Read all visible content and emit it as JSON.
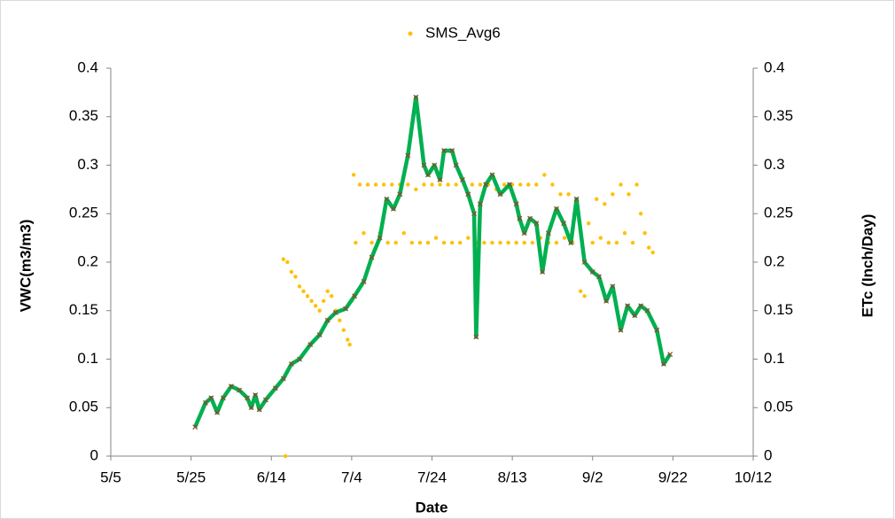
{
  "chart_data": {
    "type": "scatter",
    "x_label": "Date",
    "y_label": "VWC(m3/m3)",
    "y2_label": "ETc (Inch/Day)",
    "xlim": [
      125,
      285
    ],
    "xticks": [
      {
        "value": 125,
        "label": "5/5"
      },
      {
        "value": 145,
        "label": "5/25"
      },
      {
        "value": 165,
        "label": "6/14"
      },
      {
        "value": 185,
        "label": "7/4"
      },
      {
        "value": 205,
        "label": "7/24"
      },
      {
        "value": 225,
        "label": "8/13"
      },
      {
        "value": 245,
        "label": "9/2"
      },
      {
        "value": 265,
        "label": "9/22"
      },
      {
        "value": 285,
        "label": "10/12"
      }
    ],
    "ylim": [
      0,
      0.4
    ],
    "yticks": [
      0,
      0.05,
      0.1,
      0.15,
      0.2,
      0.25,
      0.3,
      0.35,
      0.4
    ],
    "y2lim": [
      0,
      0.4
    ],
    "y2ticks": [
      0,
      0.05,
      0.1,
      0.15,
      0.2,
      0.25,
      0.3,
      0.35,
      0.4
    ],
    "legend": "top",
    "series": [
      {
        "name": "SMS_Avg6",
        "type": "scatter",
        "color": "#FFC000",
        "x": [
          168,
          168.5,
          169,
          170,
          171,
          172,
          173,
          174,
          175,
          176,
          177,
          178,
          179,
          180,
          181,
          182,
          183,
          184,
          184.5,
          185,
          185.5,
          186,
          187,
          188,
          189,
          190,
          191,
          192,
          193,
          194,
          195,
          196,
          197,
          198,
          199,
          200,
          201,
          202,
          203,
          204,
          205,
          206,
          207,
          208,
          209,
          210,
          211,
          212,
          213,
          214,
          215,
          216,
          217,
          218,
          219,
          220,
          221,
          222,
          223,
          224,
          225,
          226,
          227,
          228,
          229,
          230,
          231,
          232,
          233,
          234,
          235,
          236,
          237,
          238,
          239,
          240,
          241,
          242,
          243,
          244,
          245,
          246,
          247,
          248,
          249,
          250,
          251,
          252,
          253,
          254,
          255,
          256,
          257,
          258,
          259,
          260
        ],
        "values": [
          0.203,
          0,
          0.2,
          0.19,
          0.185,
          0.175,
          0.17,
          0.165,
          0.16,
          0.155,
          0.15,
          0.16,
          0.17,
          0.165,
          0.15,
          0.14,
          0.13,
          0.12,
          0.115,
          0.16,
          0.29,
          0.22,
          0.28,
          0.23,
          0.28,
          0.22,
          0.28,
          0.23,
          0.28,
          0.22,
          0.28,
          0.22,
          0.28,
          0.23,
          0.28,
          0.22,
          0.275,
          0.22,
          0.28,
          0.22,
          0.28,
          0.225,
          0.28,
          0.22,
          0.28,
          0.22,
          0.28,
          0.22,
          0.28,
          0.225,
          0.28,
          0.22,
          0.28,
          0.22,
          0.28,
          0.22,
          0.275,
          0.22,
          0.28,
          0.22,
          0.28,
          0.22,
          0.28,
          0.22,
          0.28,
          0.22,
          0.28,
          0.225,
          0.29,
          0.22,
          0.28,
          0.22,
          0.27,
          0.225,
          0.27,
          0.22,
          0.265,
          0.17,
          0.165,
          0.24,
          0.22,
          0.265,
          0.225,
          0.26,
          0.22,
          0.27,
          0.22,
          0.28,
          0.23,
          0.27,
          0.22,
          0.28,
          0.25,
          0.23,
          0.215,
          0.21
        ]
      },
      {
        "type": "line",
        "axis": "y2",
        "color": "#00B050",
        "marker_color": "#8B4A2B",
        "x": [
          146,
          148.6,
          150,
          151.5,
          153,
          155,
          157,
          159,
          160,
          161,
          162,
          163.6,
          166,
          168,
          170,
          172,
          174.7,
          177,
          179,
          181,
          183.5,
          185.7,
          188,
          190,
          192,
          193.7,
          195.4,
          197,
          199,
          201,
          203,
          204,
          205.6,
          207,
          208,
          210,
          211,
          212.6,
          214,
          215.5,
          216,
          217,
          218.4,
          220,
          222,
          224.3,
          226,
          226.8,
          228,
          229.4,
          231,
          232.5,
          234,
          236,
          237.8,
          239.6,
          241,
          243,
          245,
          246.6,
          248.4,
          250,
          252,
          253.7,
          255.5,
          257,
          258.6,
          261,
          262.7,
          264.3
        ],
        "values": [
          0.03,
          0.055,
          0.06,
          0.045,
          0.06,
          0.072,
          0.068,
          0.06,
          0.05,
          0.063,
          0.048,
          0.058,
          0.07,
          0.08,
          0.095,
          0.1,
          0.115,
          0.125,
          0.14,
          0.148,
          0.152,
          0.165,
          0.18,
          0.205,
          0.225,
          0.265,
          0.255,
          0.27,
          0.31,
          0.37,
          0.3,
          0.29,
          0.3,
          0.285,
          0.315,
          0.315,
          0.3,
          0.285,
          0.27,
          0.25,
          0.123,
          0.26,
          0.28,
          0.29,
          0.27,
          0.28,
          0.26,
          0.245,
          0.23,
          0.245,
          0.24,
          0.19,
          0.23,
          0.255,
          0.24,
          0.22,
          0.265,
          0.2,
          0.19,
          0.185,
          0.16,
          0.175,
          0.13,
          0.155,
          0.145,
          0.155,
          0.15,
          0.13,
          0.095,
          0.105
        ]
      }
    ]
  }
}
